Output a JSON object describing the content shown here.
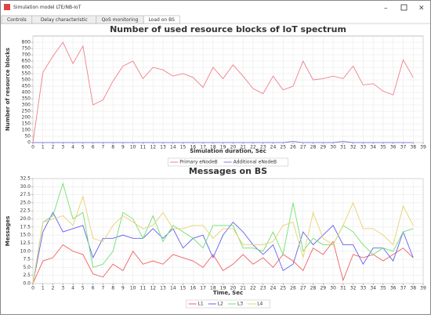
{
  "window": {
    "title": "Simulation model LTE/NB-IoT",
    "tabs": [
      "Controls",
      "Delay characteristic",
      "QoS monitoring",
      "Load on BS"
    ],
    "active_tab": 3
  },
  "chart_data": [
    {
      "type": "line",
      "title": "Number of used resource blocks of IoT spectrum",
      "xlabel": "Simulation duration, Sec",
      "ylabel": "Number of resource blocks",
      "x": [
        0,
        1,
        2,
        3,
        4,
        5,
        6,
        7,
        8,
        9,
        10,
        11,
        12,
        13,
        14,
        15,
        16,
        17,
        18,
        19,
        20,
        21,
        22,
        23,
        24,
        25,
        26,
        27,
        28,
        29,
        30,
        31,
        32,
        33,
        34,
        35,
        36,
        37,
        38
      ],
      "xlim": [
        0,
        39
      ],
      "xticks": [
        0,
        1,
        2,
        3,
        4,
        5,
        6,
        7,
        8,
        9,
        10,
        11,
        12,
        13,
        14,
        15,
        16,
        17,
        18,
        19,
        20,
        21,
        22,
        23,
        24,
        25,
        26,
        27,
        28,
        29,
        30,
        31,
        32,
        33,
        34,
        35,
        36,
        37,
        38,
        39
      ],
      "ylim": [
        0,
        850
      ],
      "yticks": [
        0,
        50,
        100,
        150,
        200,
        250,
        300,
        350,
        400,
        450,
        500,
        550,
        600,
        650,
        700,
        750,
        800
      ],
      "grid": true,
      "series": [
        {
          "name": "Primary eNodeB",
          "color": "#f07f88",
          "values": [
            0,
            560,
            690,
            800,
            630,
            770,
            300,
            340,
            490,
            610,
            650,
            510,
            600,
            580,
            530,
            550,
            520,
            440,
            600,
            510,
            620,
            530,
            430,
            390,
            530,
            420,
            450,
            650,
            500,
            510,
            530,
            510,
            610,
            460,
            470,
            410,
            380,
            660,
            520
          ]
        },
        {
          "name": "Additional eNodeB",
          "color": "#7f7fe0",
          "values": [
            0,
            0,
            0,
            0,
            0,
            0,
            0,
            0,
            0,
            0,
            0,
            0,
            0,
            0,
            0,
            0,
            0,
            0,
            0,
            0,
            0,
            0,
            0,
            0,
            0,
            0,
            10,
            0,
            0,
            0,
            0,
            10,
            0,
            0,
            0,
            0,
            0,
            0,
            0
          ]
        }
      ]
    },
    {
      "type": "line",
      "title": "Messages on BS",
      "xlabel": "Time, Sec",
      "ylabel": "Messages",
      "x": [
        0,
        1,
        2,
        3,
        4,
        5,
        6,
        7,
        8,
        9,
        10,
        11,
        12,
        13,
        14,
        15,
        16,
        17,
        18,
        19,
        20,
        21,
        22,
        23,
        24,
        25,
        26,
        27,
        28,
        29,
        30,
        31,
        32,
        33,
        34,
        35,
        36,
        37,
        38
      ],
      "xlim": [
        0,
        39
      ],
      "xticks": [
        0,
        1,
        2,
        3,
        4,
        5,
        6,
        7,
        8,
        9,
        10,
        11,
        12,
        13,
        14,
        15,
        16,
        17,
        18,
        19,
        20,
        21,
        22,
        23,
        24,
        25,
        26,
        27,
        28,
        29,
        30,
        31,
        32,
        33,
        34,
        35,
        36,
        37,
        38,
        39
      ],
      "ylim": [
        0,
        32.5
      ],
      "yticks": [
        {
          "value": 0,
          "label": "0.0"
        },
        2.5,
        {
          "value": 5,
          "label": "5.0"
        },
        7.5,
        {
          "value": 10,
          "label": "10.0"
        },
        12.5,
        {
          "value": 15,
          "label": "15.0"
        },
        17.5,
        {
          "value": 20,
          "label": "20.0"
        },
        22.5,
        {
          "value": 25,
          "label": "25.0"
        },
        27.5,
        {
          "value": 30,
          "label": "30.0"
        },
        32.5
      ],
      "grid": true,
      "series": [
        {
          "name": "L1",
          "color": "#f06060",
          "values": [
            0,
            7,
            8,
            12,
            10,
            9,
            3,
            2,
            6,
            4,
            10,
            6,
            7,
            6,
            9,
            8,
            7,
            5,
            9,
            4,
            6,
            9,
            6,
            8,
            5,
            9,
            7,
            4,
            11,
            9,
            13,
            1,
            9,
            8,
            9,
            7,
            9,
            11,
            8
          ]
        },
        {
          "name": "L2",
          "color": "#6060f0",
          "values": [
            0,
            16,
            22,
            16,
            17,
            18,
            8,
            14,
            14,
            15,
            14,
            14,
            17,
            14,
            17,
            11,
            14,
            15,
            8,
            15,
            19,
            16,
            12,
            9,
            12,
            4,
            6,
            16,
            12,
            15,
            18,
            12,
            12,
            6,
            11,
            11,
            7,
            16,
            8
          ]
        },
        {
          "name": "L3",
          "color": "#70e070",
          "values": [
            0,
            19,
            21,
            31,
            20,
            22,
            5,
            6,
            10,
            22,
            20,
            14,
            21,
            13,
            18,
            16,
            14,
            11,
            18,
            18,
            18,
            11,
            11,
            10,
            16,
            9,
            25,
            10,
            14,
            12,
            12,
            18,
            16,
            12,
            9,
            11,
            10,
            16,
            17
          ]
        },
        {
          "name": "L4",
          "color": "#e8d070",
          "values": [
            0,
            19,
            20,
            21,
            18,
            27,
            14,
            13,
            18,
            21,
            19,
            17,
            18,
            22,
            17,
            17,
            18,
            18,
            14,
            17,
            17,
            12,
            12,
            12,
            13,
            18,
            19,
            8,
            22,
            14,
            12,
            18,
            25,
            17,
            17,
            15,
            12,
            24,
            18
          ]
        }
      ]
    }
  ]
}
